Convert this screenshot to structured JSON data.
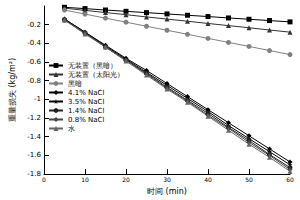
{
  "chart_data": {
    "type": "line",
    "x_label": "时间 (min)",
    "y_label": "重量损失 (kg/m²)",
    "x": [
      5,
      10,
      15,
      20,
      25,
      30,
      35,
      40,
      45,
      50,
      55,
      60
    ],
    "series": [
      {
        "name": "无装置（黑暗）",
        "color": "#000000",
        "marker": "square",
        "values": [
          -0.014,
          -0.028,
          -0.043,
          -0.057,
          -0.071,
          -0.085,
          -0.099,
          -0.113,
          -0.128,
          -0.142,
          -0.156,
          -0.17
        ]
      },
      {
        "name": "无装置（太阳光）",
        "color": "#333333",
        "marker": "triangle",
        "values": [
          -0.023,
          -0.047,
          -0.07,
          -0.093,
          -0.117,
          -0.14,
          -0.163,
          -0.187,
          -0.21,
          -0.233,
          -0.257,
          -0.28
        ]
      },
      {
        "name": "黑暗",
        "color": "#808080",
        "marker": "circle",
        "values": [
          -0.043,
          -0.087,
          -0.13,
          -0.173,
          -0.217,
          -0.26,
          -0.303,
          -0.347,
          -0.39,
          -0.433,
          -0.477,
          -0.52
        ]
      },
      {
        "name": "4.1% NaCl",
        "color": "#000000",
        "marker": "diamond",
        "values": [
          -0.14,
          -0.28,
          -0.42,
          -0.56,
          -0.69,
          -0.83,
          -0.97,
          -1.11,
          -1.25,
          -1.39,
          -1.53,
          -1.67
        ]
      },
      {
        "name": "3.5% NaCl",
        "color": "#000000",
        "marker": "star",
        "values": [
          -0.14,
          -0.28,
          -0.43,
          -0.57,
          -0.71,
          -0.85,
          -0.99,
          -1.13,
          -1.28,
          -1.42,
          -1.56,
          -1.7
        ]
      },
      {
        "name": "1.4% NaCl",
        "color": "#222222",
        "marker": "circle",
        "values": [
          -0.15,
          -0.29,
          -0.44,
          -0.58,
          -0.72,
          -0.87,
          -1.01,
          -1.15,
          -1.3,
          -1.44,
          -1.59,
          -1.73
        ]
      },
      {
        "name": "0.8% NaCl",
        "color": "#444444",
        "marker": "diamond",
        "values": [
          -0.15,
          -0.29,
          -0.44,
          -0.58,
          -0.73,
          -0.88,
          -1.02,
          -1.17,
          -1.31,
          -1.46,
          -1.6,
          -1.75
        ]
      },
      {
        "name": "水",
        "color": "#666666",
        "marker": "triangle",
        "values": [
          -0.15,
          -0.3,
          -0.44,
          -0.59,
          -0.74,
          -0.89,
          -1.03,
          -1.18,
          -1.33,
          -1.48,
          -1.62,
          -1.77
        ]
      }
    ],
    "xlim": [
      0,
      60
    ],
    "xticks": [
      0,
      10,
      20,
      30,
      40,
      50,
      60
    ],
    "ylim": [
      -1.8,
      0
    ],
    "yticks": [
      -1.8,
      -1.6,
      -1.4,
      -1.2,
      -1.0,
      -0.8,
      -0.6,
      -0.4,
      -0.2
    ],
    "legend": "left",
    "grid": false
  }
}
